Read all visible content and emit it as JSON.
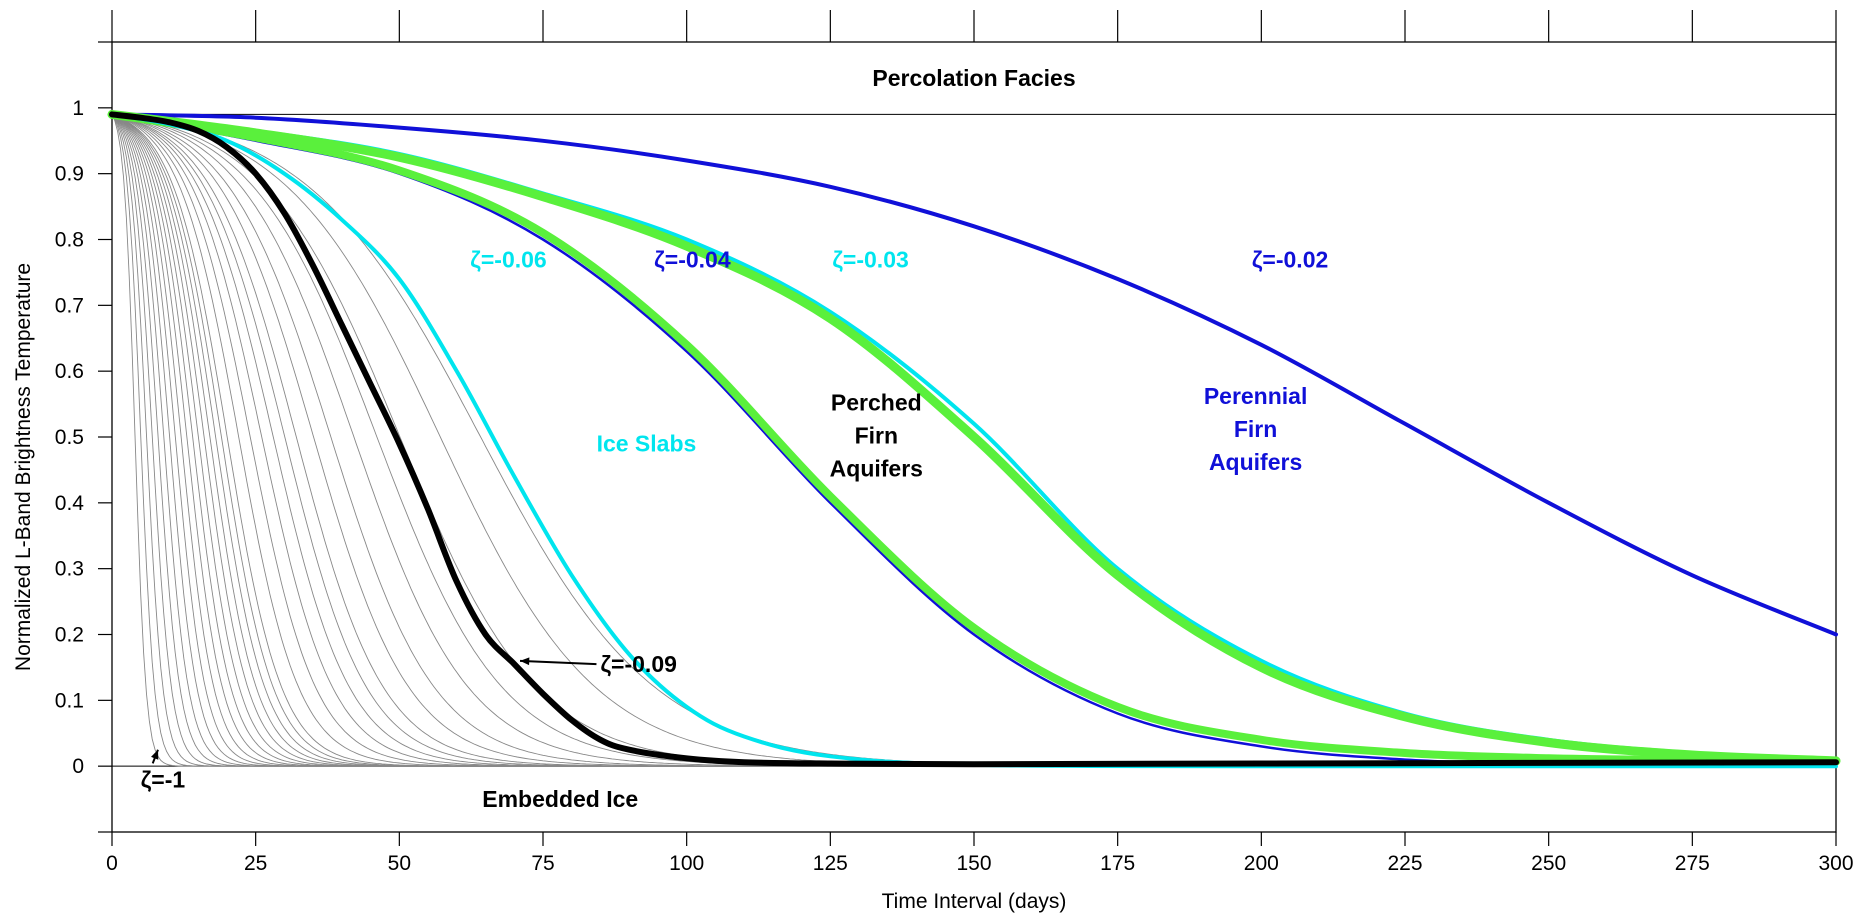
{
  "chart_data": {
    "type": "line",
    "title": "",
    "xlabel": "Time Interval  (days)",
    "ylabel": "Normalized L-Band Brightness Temperature",
    "xlim": [
      0,
      300
    ],
    "ylim": [
      -0.1,
      1.1
    ],
    "x_ticks": [
      0,
      25,
      50,
      75,
      100,
      125,
      150,
      175,
      200,
      225,
      250,
      275,
      300
    ],
    "y_ticks": [
      0,
      0.1,
      0.2,
      0.3,
      0.4,
      0.5,
      0.6,
      0.7,
      0.8,
      0.9,
      1
    ],
    "y_tick_labels": [
      "0",
      "0.1",
      "0.2",
      "0.3",
      "0.4",
      "0.5",
      "0.6",
      "0.7",
      "0.8",
      "0.9",
      "1"
    ],
    "grid": false,
    "legend": "none",
    "reference_lines": [
      {
        "axis": "y",
        "value": 0.99,
        "color": "#000000"
      },
      {
        "axis": "y",
        "value": 0.0,
        "color": "#000000"
      }
    ],
    "gray_family": {
      "description_zeta_range": [
        -1,
        -0.09
      ],
      "color": "#888888",
      "midpoints_days": [
        4,
        5,
        6,
        7,
        8,
        9,
        10,
        11,
        12,
        13,
        14,
        15,
        16,
        17,
        18,
        19,
        20,
        22,
        24,
        26,
        28,
        30,
        32,
        35,
        38,
        42,
        46,
        50,
        57,
        64
      ],
      "steepness": 0.35
    },
    "series": [
      {
        "name": "ζ=-0.02",
        "color": "#1010d8",
        "width": 4,
        "x": [
          0,
          25,
          50,
          75,
          100,
          125,
          150,
          175,
          200,
          225,
          250,
          275,
          300
        ],
        "y": [
          0.99,
          0.985,
          0.97,
          0.95,
          0.92,
          0.88,
          0.82,
          0.74,
          0.64,
          0.52,
          0.4,
          0.29,
          0.2
        ]
      },
      {
        "name": "ζ=-0.03",
        "color": "#00e5ee",
        "width": 4,
        "x": [
          0,
          25,
          50,
          75,
          100,
          125,
          150,
          175,
          200,
          225,
          250,
          275,
          300
        ],
        "y": [
          0.99,
          0.965,
          0.93,
          0.87,
          0.8,
          0.69,
          0.52,
          0.3,
          0.16,
          0.08,
          0.04,
          0.02,
          0.01
        ]
      },
      {
        "name": "",
        "color": "#5af03c",
        "width": 9,
        "x": [
          0,
          25,
          50,
          75,
          100,
          125,
          150,
          175,
          200,
          225,
          250,
          275,
          300
        ],
        "y": [
          0.99,
          0.962,
          0.925,
          0.865,
          0.79,
          0.68,
          0.5,
          0.29,
          0.15,
          0.075,
          0.036,
          0.017,
          0.008
        ]
      },
      {
        "name": "ζ=-0.04",
        "color": "#1010d8",
        "width": 2.5,
        "x": [
          0,
          25,
          50,
          75,
          100,
          125,
          150,
          175,
          200,
          225,
          250,
          275,
          300
        ],
        "y": [
          0.99,
          0.95,
          0.9,
          0.8,
          0.63,
          0.4,
          0.2,
          0.08,
          0.03,
          0.01,
          0.003,
          0.001,
          0.0
        ]
      },
      {
        "name": "",
        "color": "#5af03c",
        "width": 8,
        "x": [
          0,
          25,
          50,
          75,
          100,
          125,
          150,
          175,
          200,
          225,
          250,
          275,
          300
        ],
        "y": [
          0.99,
          0.955,
          0.905,
          0.81,
          0.64,
          0.41,
          0.21,
          0.09,
          0.04,
          0.02,
          0.012,
          0.009,
          0.007
        ]
      },
      {
        "name": "ζ=-0.06",
        "color": "#00e5ee",
        "width": 4,
        "x": [
          0,
          10,
          20,
          30,
          40,
          50,
          60,
          70,
          80,
          90,
          100,
          110,
          125,
          150,
          200,
          300
        ],
        "y": [
          0.99,
          0.975,
          0.95,
          0.9,
          0.83,
          0.74,
          0.6,
          0.44,
          0.29,
          0.17,
          0.09,
          0.045,
          0.015,
          0.002,
          0.0,
          0.0
        ]
      },
      {
        "name": "ζ=-0.09",
        "color": "#000000",
        "width": 6,
        "x": [
          0,
          5,
          10,
          15,
          20,
          25,
          30,
          35,
          40,
          45,
          50,
          55,
          60,
          65,
          70,
          75,
          80,
          85,
          90,
          100,
          110,
          125,
          150,
          200,
          300
        ],
        "y": [
          0.99,
          0.985,
          0.978,
          0.965,
          0.94,
          0.9,
          0.84,
          0.76,
          0.67,
          0.58,
          0.49,
          0.39,
          0.28,
          0.2,
          0.155,
          0.11,
          0.07,
          0.04,
          0.025,
          0.012,
          0.006,
          0.004,
          0.003,
          0.004,
          0.006
        ]
      }
    ],
    "annotations": [
      {
        "text": "Percolation Facies",
        "x": 150,
        "y": 1.045,
        "color": "#000000"
      },
      {
        "text": "Embedded Ice",
        "x": 78,
        "y": -0.05,
        "color": "#000000"
      },
      {
        "text": "ζ=-0.06",
        "x": 69,
        "y": 0.77,
        "color": "#00e5ee"
      },
      {
        "text": "ζ=-0.04",
        "x": 101,
        "y": 0.77,
        "color": "#1010d8"
      },
      {
        "text": "ζ=-0.03",
        "x": 132,
        "y": 0.77,
        "color": "#00e5ee"
      },
      {
        "text": "ζ=-0.02",
        "x": 205,
        "y": 0.77,
        "color": "#1010d8"
      },
      {
        "text": "Ice Slabs",
        "x": 93,
        "y": 0.49,
        "color": "#00e5ee"
      },
      {
        "lines": [
          "Perched",
          "Firn",
          "Aquifers"
        ],
        "x": 133,
        "y": 0.54,
        "color": "#000000"
      },
      {
        "lines": [
          "Perennial",
          "Firn",
          "Aquifers"
        ],
        "x": 199,
        "y": 0.55,
        "color": "#1010d8"
      },
      {
        "text": "ζ=-0.09",
        "x": 85,
        "y": 0.155,
        "color": "#000000",
        "arrow_to": [
          71,
          0.16
        ]
      },
      {
        "text": "ζ=-1",
        "x": 5,
        "y": -0.02,
        "color": "#000000",
        "arrow_to": [
          8,
          0.025
        ]
      }
    ]
  }
}
